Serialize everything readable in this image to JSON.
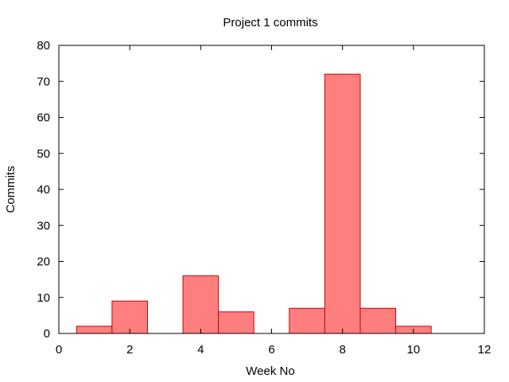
{
  "chart_data": {
    "type": "bar",
    "title": "Project 1 commits",
    "xlabel": "Week No",
    "ylabel": "Commits",
    "xlim": [
      0,
      12
    ],
    "ylim": [
      0,
      80
    ],
    "x_ticks": [
      0,
      2,
      4,
      6,
      8,
      10,
      12
    ],
    "y_ticks": [
      0,
      10,
      20,
      30,
      40,
      50,
      60,
      70,
      80
    ],
    "bar_width": 1,
    "bars": [
      {
        "x": 1,
        "value": 2
      },
      {
        "x": 2,
        "value": 9
      },
      {
        "x": 4,
        "value": 16
      },
      {
        "x": 5,
        "value": 6
      },
      {
        "x": 7,
        "value": 7
      },
      {
        "x": 8,
        "value": 72
      },
      {
        "x": 9,
        "value": 7
      },
      {
        "x": 10,
        "value": 2
      }
    ],
    "grid": false,
    "legend": "none",
    "colors": {
      "bar_fill": "#ff7f7f",
      "bar_stroke": "#cc0000",
      "axis": "#000000"
    }
  }
}
